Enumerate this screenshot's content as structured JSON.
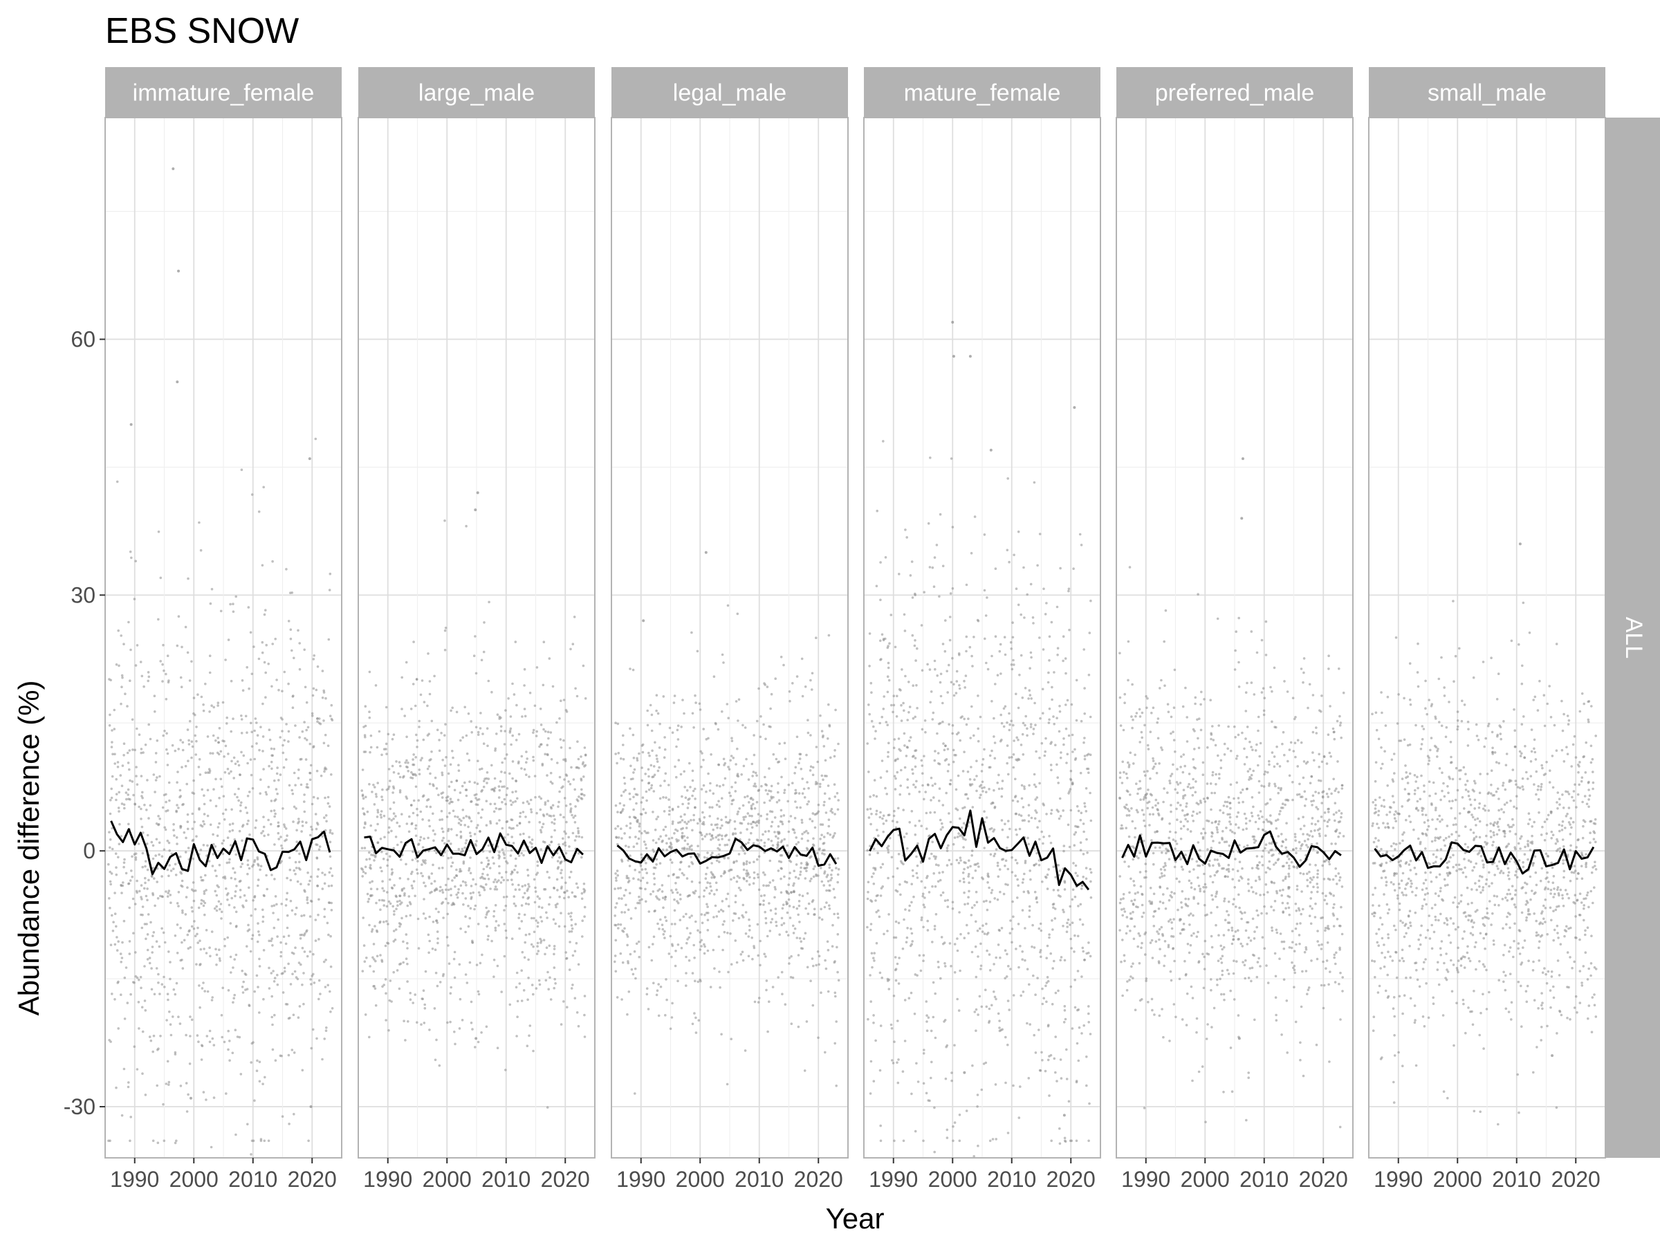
{
  "chart_data": {
    "type": "scatter",
    "title": "EBS SNOW",
    "xlabel": "Year",
    "ylabel": "Abundance difference (%)",
    "row_strip": "ALL",
    "xlim": [
      1985,
      2025
    ],
    "ylim": [
      -36,
      86
    ],
    "x_ticks": [
      1990,
      2000,
      2010,
      2020
    ],
    "x_tick_labels": [
      "1990",
      "2000",
      "2010",
      "2020"
    ],
    "y_ticks": [
      -30,
      0,
      30,
      60
    ],
    "y_tick_labels": [
      "-30",
      "0",
      "30",
      "60"
    ],
    "grid": true,
    "point_color": "#8c8c8c",
    "line_color": "#000000",
    "strip_fill": "#b3b3b3",
    "panels": [
      {
        "name": "immature_female",
        "spread": 14,
        "x": [
          1990,
          1995,
          2000,
          2005,
          2010,
          2015,
          2020
        ],
        "line": [
          1.6,
          -2.6,
          -0.6,
          1.2,
          -0.4,
          -1.6,
          0.3
        ],
        "outliers": [
          [
            1996.5,
            80
          ],
          [
            1997.4,
            68
          ],
          [
            1997.2,
            55
          ],
          [
            2019.6,
            46
          ],
          [
            1989.4,
            50
          ],
          [
            1999.5,
            -29
          ],
          [
            2019.8,
            -30
          ]
        ]
      },
      {
        "name": "large_male",
        "spread": 10,
        "x": [
          1990,
          1995,
          2000,
          2005,
          2010,
          2015,
          2020
        ],
        "line": [
          0.3,
          0.5,
          -0.5,
          0.2,
          0.8,
          -0.6,
          -0.4
        ],
        "outliers": [
          [
            2005.2,
            42
          ],
          [
            2004.8,
            40
          ],
          [
            2004.9,
            -22
          ]
        ]
      },
      {
        "name": "legal_male",
        "spread": 9,
        "x": [
          1990,
          1995,
          2000,
          2005,
          2010,
          2015,
          2020
        ],
        "line": [
          -0.2,
          0.1,
          -0.8,
          0.4,
          1.0,
          -0.6,
          -0.5
        ],
        "outliers": [
          [
            2001.0,
            35
          ],
          [
            1990.4,
            27
          ]
        ]
      },
      {
        "name": "mature_female",
        "spread": 16,
        "x": [
          1990,
          1995,
          2000,
          2005,
          2010,
          2015,
          2020
        ],
        "line": [
          0.5,
          0.8,
          3.4,
          2.0,
          1.3,
          -0.4,
          -2.8
        ],
        "outliers": [
          [
            2000.0,
            62
          ],
          [
            2000.2,
            58
          ],
          [
            2003.0,
            58
          ],
          [
            2006.5,
            47
          ],
          [
            2002.0,
            -26
          ],
          [
            2018.9,
            -31
          ],
          [
            2020.6,
            52
          ]
        ]
      },
      {
        "name": "preferred_male",
        "spread": 10,
        "x": [
          1990,
          1995,
          2000,
          2005,
          2010,
          2015,
          2020
        ],
        "line": [
          0.6,
          0.3,
          -0.8,
          -0.2,
          1.6,
          -0.8,
          -0.4
        ],
        "outliers": [
          [
            2006.4,
            46
          ],
          [
            2006.2,
            39
          ],
          [
            2005.8,
            -22
          ]
        ]
      },
      {
        "name": "small_male",
        "spread": 10,
        "x": [
          1990,
          1995,
          2000,
          2005,
          2010,
          2015,
          2020
        ],
        "line": [
          -0.4,
          -0.6,
          -0.3,
          -0.2,
          -1.4,
          -0.9,
          -0.7
        ],
        "outliers": [
          [
            2010.6,
            36
          ],
          [
            2016.0,
            -24
          ]
        ]
      }
    ]
  }
}
